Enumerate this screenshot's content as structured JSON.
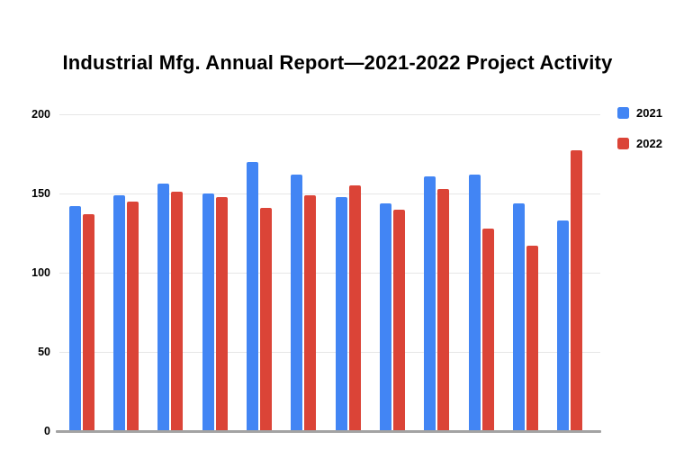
{
  "title": "Industrial Mfg. Annual Report—2021-2022 Project Activity",
  "colors": {
    "series_2021": "#4285F4",
    "series_2022": "#DB4437",
    "gridline": "#e6e6e6",
    "baseline": "#a3a3a3",
    "axis_text": "#000000",
    "background": "#ffffff"
  },
  "legend": [
    {
      "label": "2021",
      "color": "#4285F4"
    },
    {
      "label": "2022",
      "color": "#DB4437"
    }
  ],
  "y_axis": {
    "tick_labels": [
      "200",
      "150",
      "100",
      "50",
      "0"
    ]
  },
  "chart_data": {
    "type": "bar",
    "title": "Industrial Mfg. Annual Report—2021-2022 Project Activity",
    "categories": [
      "",
      "",
      "",
      "",
      "",
      "",
      "",
      "",
      "",
      "",
      "",
      ""
    ],
    "num_groups": 12,
    "series": [
      {
        "name": "2021",
        "color": "#4285F4",
        "values": [
          142,
          149,
          156,
          150,
          170,
          162,
          148,
          144,
          161,
          162,
          144,
          133
        ]
      },
      {
        "name": "2022",
        "color": "#DB4437",
        "values": [
          137,
          145,
          151,
          148,
          141,
          149,
          155,
          140,
          153,
          128,
          117,
          177
        ]
      }
    ],
    "xlabel": "",
    "ylabel": "",
    "ylim": [
      0,
      200
    ],
    "yticks": [
      0,
      50,
      100,
      150,
      200
    ],
    "grid": true,
    "x_axis_labels_visible": false,
    "legend_position": "right"
  }
}
